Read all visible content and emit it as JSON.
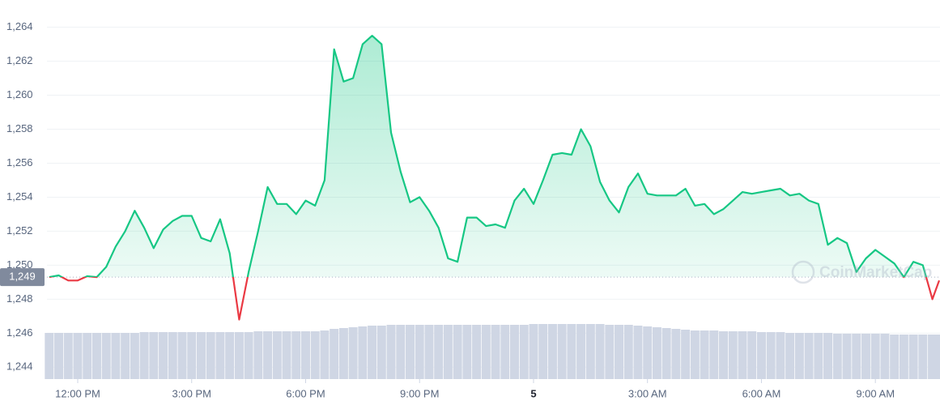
{
  "chart_data": {
    "type": "line",
    "watermark": "CoinMarketCap",
    "x": [
      11.25,
      11.5,
      11.75,
      12,
      12.25,
      12.5,
      12.75,
      13,
      13.25,
      13.5,
      13.75,
      14,
      14.25,
      14.5,
      14.75,
      15,
      15.25,
      15.5,
      15.75,
      16,
      16.25,
      16.5,
      16.75,
      17,
      17.25,
      17.5,
      17.75,
      18,
      18.25,
      18.5,
      18.75,
      19,
      19.25,
      19.5,
      19.75,
      20,
      20.25,
      20.5,
      20.75,
      21,
      21.25,
      21.5,
      21.75,
      22,
      22.25,
      22.5,
      22.75,
      23,
      23.25,
      23.5,
      23.75,
      24,
      24.25,
      24.5,
      24.75,
      25,
      25.25,
      25.5,
      25.75,
      26,
      26.25,
      26.5,
      26.75,
      27,
      27.25,
      27.5,
      27.75,
      28,
      28.25,
      28.5,
      28.75,
      29,
      29.25,
      29.5,
      29.75,
      30,
      30.25,
      30.5,
      30.75,
      31,
      31.25,
      31.5,
      31.75,
      32,
      32.25,
      32.5,
      32.75,
      33,
      33.25,
      33.5,
      33.75,
      34,
      34.25,
      34.5,
      34.68
    ],
    "series": [
      {
        "name": "Price",
        "color": "#16c784",
        "below_color": "#ea3943",
        "values": [
          1249.3,
          1249.4,
          1249.1,
          1249.1,
          1249.35,
          1249.3,
          1249.9,
          1251.1,
          1252.0,
          1253.2,
          1252.2,
          1251.0,
          1252.1,
          1252.6,
          1252.9,
          1252.9,
          1251.6,
          1251.4,
          1252.7,
          1250.7,
          1246.8,
          1249.6,
          1252.0,
          1254.6,
          1253.6,
          1253.6,
          1253.0,
          1253.8,
          1253.5,
          1255.0,
          1262.7,
          1260.8,
          1261.0,
          1263.0,
          1263.5,
          1263.0,
          1257.8,
          1255.5,
          1253.7,
          1254.0,
          1253.2,
          1252.2,
          1250.4,
          1250.2,
          1252.8,
          1252.8,
          1252.3,
          1252.4,
          1252.2,
          1253.8,
          1254.5,
          1253.6,
          1255.0,
          1256.5,
          1256.6,
          1256.5,
          1258.0,
          1257.0,
          1254.9,
          1253.8,
          1253.1,
          1254.6,
          1255.4,
          1254.2,
          1254.1,
          1254.1,
          1254.1,
          1254.5,
          1253.5,
          1253.6,
          1253.0,
          1253.3,
          1253.8,
          1254.3,
          1254.2,
          1254.3,
          1254.4,
          1254.5,
          1254.1,
          1254.2,
          1253.8,
          1253.6,
          1251.2,
          1251.6,
          1251.3,
          1249.6,
          1250.4,
          1250.9,
          1250.5,
          1250.1,
          1249.3,
          1250.2,
          1250.0,
          1248.0,
          1249.1
        ]
      },
      {
        "name": "Volume",
        "color": "#cfd6e4",
        "values": [
          57,
          57,
          57,
          57,
          57,
          57,
          57,
          57,
          57,
          57,
          58,
          58,
          58,
          58,
          58,
          58,
          58,
          58,
          58,
          58,
          58,
          58,
          59,
          59,
          59,
          59,
          59,
          59,
          59,
          60,
          62,
          63,
          64,
          65,
          66,
          66,
          67,
          67,
          67,
          67,
          67,
          67,
          67,
          67,
          67,
          67,
          67,
          67,
          67,
          67,
          67,
          68,
          68,
          68,
          68,
          68,
          68,
          68,
          68,
          67,
          67,
          67,
          66,
          65,
          64,
          63,
          62,
          61,
          60,
          60,
          60,
          59,
          59,
          59,
          59,
          58,
          58,
          58,
          57,
          57,
          57,
          57,
          57,
          56,
          56,
          56,
          56,
          56,
          56,
          55,
          55,
          55,
          55,
          55,
          55
        ]
      }
    ],
    "reference": {
      "value": 1249.3,
      "label": "1,249"
    },
    "xlim": [
      11.19,
      34.68
    ],
    "xticks": [
      {
        "value": 12,
        "label": "12:00 PM"
      },
      {
        "value": 15,
        "label": "3:00 PM"
      },
      {
        "value": 18,
        "label": "6:00 PM"
      },
      {
        "value": 21,
        "label": "9:00 PM"
      },
      {
        "value": 24,
        "label": "5"
      },
      {
        "value": 27,
        "label": "3:00 AM"
      },
      {
        "value": 30,
        "label": "6:00 AM"
      },
      {
        "value": 33,
        "label": "9:00 AM"
      }
    ],
    "ylim": [
      1243.3,
      1265.6
    ],
    "yticks": [
      {
        "value": 1244,
        "label": "1,244"
      },
      {
        "value": 1246,
        "label": "1,246"
      },
      {
        "value": 1248,
        "label": "1,248"
      },
      {
        "value": 1250,
        "label": "1,250"
      },
      {
        "value": 1252,
        "label": "1,252"
      },
      {
        "value": 1254,
        "label": "1,254"
      },
      {
        "value": 1256,
        "label": "1,256"
      },
      {
        "value": 1258,
        "label": "1,258"
      },
      {
        "value": 1260,
        "label": "1,260"
      },
      {
        "value": 1262,
        "label": "1,262"
      },
      {
        "value": 1264,
        "label": "1,264"
      }
    ],
    "grid": true
  }
}
